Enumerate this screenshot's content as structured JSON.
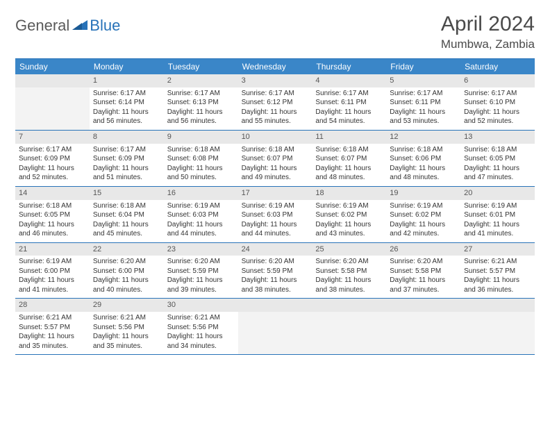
{
  "brand": {
    "part1": "General",
    "part2": "Blue"
  },
  "title": "April 2024",
  "location": "Mumbwa, Zambia",
  "header_bg": "#3a86c8",
  "accent": "#2772b8",
  "day_names": [
    "Sunday",
    "Monday",
    "Tuesday",
    "Wednesday",
    "Thursday",
    "Friday",
    "Saturday"
  ],
  "weeks": [
    [
      {
        "n": "",
        "empty": true
      },
      {
        "n": "1",
        "sr": "Sunrise: 6:17 AM",
        "ss": "Sunset: 6:14 PM",
        "dl": "Daylight: 11 hours and 56 minutes."
      },
      {
        "n": "2",
        "sr": "Sunrise: 6:17 AM",
        "ss": "Sunset: 6:13 PM",
        "dl": "Daylight: 11 hours and 56 minutes."
      },
      {
        "n": "3",
        "sr": "Sunrise: 6:17 AM",
        "ss": "Sunset: 6:12 PM",
        "dl": "Daylight: 11 hours and 55 minutes."
      },
      {
        "n": "4",
        "sr": "Sunrise: 6:17 AM",
        "ss": "Sunset: 6:11 PM",
        "dl": "Daylight: 11 hours and 54 minutes."
      },
      {
        "n": "5",
        "sr": "Sunrise: 6:17 AM",
        "ss": "Sunset: 6:11 PM",
        "dl": "Daylight: 11 hours and 53 minutes."
      },
      {
        "n": "6",
        "sr": "Sunrise: 6:17 AM",
        "ss": "Sunset: 6:10 PM",
        "dl": "Daylight: 11 hours and 52 minutes."
      }
    ],
    [
      {
        "n": "7",
        "sr": "Sunrise: 6:17 AM",
        "ss": "Sunset: 6:09 PM",
        "dl": "Daylight: 11 hours and 52 minutes."
      },
      {
        "n": "8",
        "sr": "Sunrise: 6:17 AM",
        "ss": "Sunset: 6:09 PM",
        "dl": "Daylight: 11 hours and 51 minutes."
      },
      {
        "n": "9",
        "sr": "Sunrise: 6:18 AM",
        "ss": "Sunset: 6:08 PM",
        "dl": "Daylight: 11 hours and 50 minutes."
      },
      {
        "n": "10",
        "sr": "Sunrise: 6:18 AM",
        "ss": "Sunset: 6:07 PM",
        "dl": "Daylight: 11 hours and 49 minutes."
      },
      {
        "n": "11",
        "sr": "Sunrise: 6:18 AM",
        "ss": "Sunset: 6:07 PM",
        "dl": "Daylight: 11 hours and 48 minutes."
      },
      {
        "n": "12",
        "sr": "Sunrise: 6:18 AM",
        "ss": "Sunset: 6:06 PM",
        "dl": "Daylight: 11 hours and 48 minutes."
      },
      {
        "n": "13",
        "sr": "Sunrise: 6:18 AM",
        "ss": "Sunset: 6:05 PM",
        "dl": "Daylight: 11 hours and 47 minutes."
      }
    ],
    [
      {
        "n": "14",
        "sr": "Sunrise: 6:18 AM",
        "ss": "Sunset: 6:05 PM",
        "dl": "Daylight: 11 hours and 46 minutes."
      },
      {
        "n": "15",
        "sr": "Sunrise: 6:18 AM",
        "ss": "Sunset: 6:04 PM",
        "dl": "Daylight: 11 hours and 45 minutes."
      },
      {
        "n": "16",
        "sr": "Sunrise: 6:19 AM",
        "ss": "Sunset: 6:03 PM",
        "dl": "Daylight: 11 hours and 44 minutes."
      },
      {
        "n": "17",
        "sr": "Sunrise: 6:19 AM",
        "ss": "Sunset: 6:03 PM",
        "dl": "Daylight: 11 hours and 44 minutes."
      },
      {
        "n": "18",
        "sr": "Sunrise: 6:19 AM",
        "ss": "Sunset: 6:02 PM",
        "dl": "Daylight: 11 hours and 43 minutes."
      },
      {
        "n": "19",
        "sr": "Sunrise: 6:19 AM",
        "ss": "Sunset: 6:02 PM",
        "dl": "Daylight: 11 hours and 42 minutes."
      },
      {
        "n": "20",
        "sr": "Sunrise: 6:19 AM",
        "ss": "Sunset: 6:01 PM",
        "dl": "Daylight: 11 hours and 41 minutes."
      }
    ],
    [
      {
        "n": "21",
        "sr": "Sunrise: 6:19 AM",
        "ss": "Sunset: 6:00 PM",
        "dl": "Daylight: 11 hours and 41 minutes."
      },
      {
        "n": "22",
        "sr": "Sunrise: 6:20 AM",
        "ss": "Sunset: 6:00 PM",
        "dl": "Daylight: 11 hours and 40 minutes."
      },
      {
        "n": "23",
        "sr": "Sunrise: 6:20 AM",
        "ss": "Sunset: 5:59 PM",
        "dl": "Daylight: 11 hours and 39 minutes."
      },
      {
        "n": "24",
        "sr": "Sunrise: 6:20 AM",
        "ss": "Sunset: 5:59 PM",
        "dl": "Daylight: 11 hours and 38 minutes."
      },
      {
        "n": "25",
        "sr": "Sunrise: 6:20 AM",
        "ss": "Sunset: 5:58 PM",
        "dl": "Daylight: 11 hours and 38 minutes."
      },
      {
        "n": "26",
        "sr": "Sunrise: 6:20 AM",
        "ss": "Sunset: 5:58 PM",
        "dl": "Daylight: 11 hours and 37 minutes."
      },
      {
        "n": "27",
        "sr": "Sunrise: 6:21 AM",
        "ss": "Sunset: 5:57 PM",
        "dl": "Daylight: 11 hours and 36 minutes."
      }
    ],
    [
      {
        "n": "28",
        "sr": "Sunrise: 6:21 AM",
        "ss": "Sunset: 5:57 PM",
        "dl": "Daylight: 11 hours and 35 minutes."
      },
      {
        "n": "29",
        "sr": "Sunrise: 6:21 AM",
        "ss": "Sunset: 5:56 PM",
        "dl": "Daylight: 11 hours and 35 minutes."
      },
      {
        "n": "30",
        "sr": "Sunrise: 6:21 AM",
        "ss": "Sunset: 5:56 PM",
        "dl": "Daylight: 11 hours and 34 minutes."
      },
      {
        "n": "",
        "empty": true
      },
      {
        "n": "",
        "empty": true
      },
      {
        "n": "",
        "empty": true
      },
      {
        "n": "",
        "empty": true
      }
    ]
  ]
}
